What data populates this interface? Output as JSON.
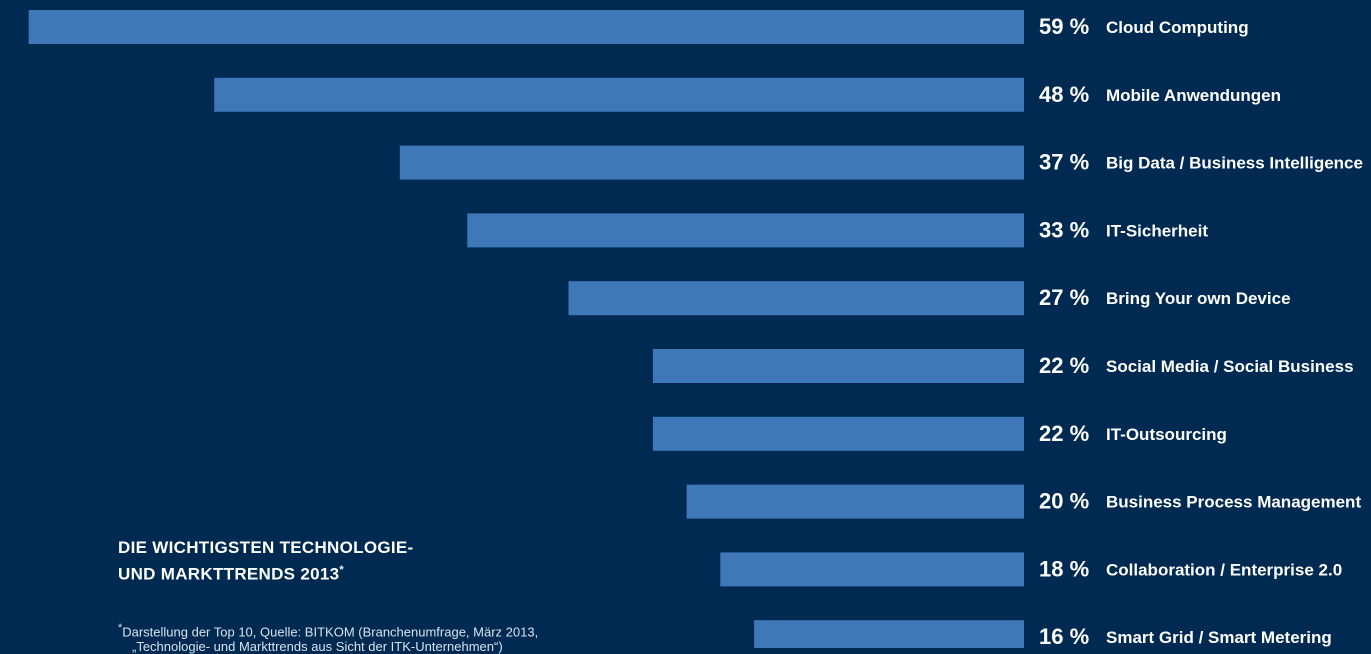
{
  "chart_data": {
    "type": "bar",
    "orientation": "horizontal",
    "categories": [
      "Cloud Computing",
      "Mobile Anwendungen",
      "Big Data / Business Intelligence",
      "IT-Sicherheit",
      "Bring Your own Device",
      "Social Media / Social Business",
      "IT-Outsourcing",
      "Business Process Management",
      "Collaboration / Enterprise 2.0",
      "Smart Grid / Smart Metering"
    ],
    "values": [
      59,
      48,
      37,
      33,
      27,
      22,
      22,
      20,
      18,
      16
    ],
    "value_labels": [
      "59 %",
      "48 %",
      "37 %",
      "33 %",
      "27 %",
      "22 %",
      "22 %",
      "20 %",
      "18 %",
      "16 %"
    ],
    "title": "",
    "xlabel": "",
    "ylabel": "",
    "xlim": [
      0,
      60
    ],
    "grid": false,
    "bar_color": "#3f78b9",
    "background_color": "#002a51"
  },
  "heading": {
    "line1": "DIE WICHTIGSTEN TECHNOLOGIE-",
    "line2": "UND MARKTTRENDS 2013",
    "marker": "*"
  },
  "footnote": {
    "marker": "*",
    "line1": "Darstellung der Top 10, Quelle: BITKOM (Branchenumfrage, März 2013,",
    "line2": "„Technologie- und Markttrends aus Sicht der ITK-Unternehmen“)"
  }
}
